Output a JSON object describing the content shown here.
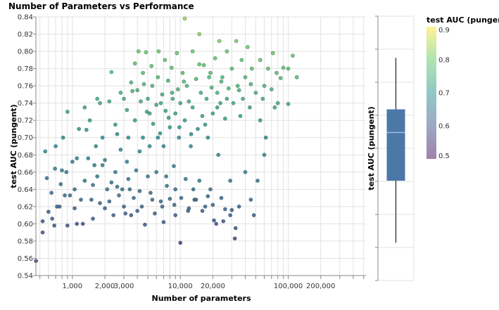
{
  "chart_data": [
    {
      "type": "scatter",
      "title": "Number of Parameters vs Performance",
      "xlabel": "Number of parameters",
      "ylabel": "test AUC (pungent)",
      "xscale": "log",
      "xlim": [
        459,
        525000
      ],
      "ylim": [
        0.54,
        0.84
      ],
      "grid": true,
      "xtick_labels": [
        "1,000",
        "2,000",
        "3,000",
        "10,000",
        "20,000",
        "100,000",
        "200,000"
      ],
      "xtick_values": [
        1000,
        2000,
        3000,
        10000,
        20000,
        100000,
        200000
      ],
      "ytick_labels": [
        "0.54",
        "0.56",
        "0.58",
        "0.60",
        "0.62",
        "0.64",
        "0.66",
        "0.68",
        "0.70",
        "0.72",
        "0.74",
        "0.76",
        "0.78",
        "0.80",
        "0.82",
        "0.84"
      ],
      "color_field": "test AUC (pungent)",
      "points": [
        [
          460,
          0.557
        ],
        [
          530,
          0.59
        ],
        [
          530,
          0.603
        ],
        [
          560,
          0.684
        ],
        [
          580,
          0.653
        ],
        [
          600,
          0.614
        ],
        [
          640,
          0.636
        ],
        [
          650,
          0.606
        ],
        [
          680,
          0.598
        ],
        [
          690,
          0.664
        ],
        [
          700,
          0.69
        ],
        [
          720,
          0.62
        ],
        [
          760,
          0.62
        ],
        [
          780,
          0.646
        ],
        [
          800,
          0.662
        ],
        [
          820,
          0.7
        ],
        [
          850,
          0.633
        ],
        [
          880,
          0.66
        ],
        [
          900,
          0.73
        ],
        [
          900,
          0.598
        ],
        [
          950,
          0.633
        ],
        [
          1000,
          0.672
        ],
        [
          1050,
          0.618
        ],
        [
          1050,
          0.64
        ],
        [
          1100,
          0.6
        ],
        [
          1100,
          0.676
        ],
        [
          1150,
          0.71
        ],
        [
          1200,
          0.628
        ],
        [
          1250,
          0.6
        ],
        [
          1300,
          0.65
        ],
        [
          1300,
          0.735
        ],
        [
          1350,
          0.709
        ],
        [
          1400,
          0.676
        ],
        [
          1450,
          0.72
        ],
        [
          1500,
          0.628
        ],
        [
          1550,
          0.645
        ],
        [
          1550,
          0.606
        ],
        [
          1600,
          0.668
        ],
        [
          1650,
          0.69
        ],
        [
          1700,
          0.745
        ],
        [
          1700,
          0.655
        ],
        [
          1800,
          0.74
        ],
        [
          1800,
          0.624
        ],
        [
          1900,
          0.668
        ],
        [
          1900,
          0.7
        ],
        [
          2000,
          0.618
        ],
        [
          2000,
          0.674
        ],
        [
          2100,
          0.64
        ],
        [
          2200,
          0.742
        ],
        [
          2200,
          0.626
        ],
        [
          2300,
          0.776
        ],
        [
          2300,
          0.648
        ],
        [
          2400,
          0.61
        ],
        [
          2500,
          0.66
        ],
        [
          2500,
          0.715
        ],
        [
          2600,
          0.704
        ],
        [
          2700,
          0.633
        ],
        [
          2800,
          0.752
        ],
        [
          2800,
          0.686
        ],
        [
          2900,
          0.64
        ],
        [
          3000,
          0.745
        ],
        [
          3000,
          0.62
        ],
        [
          3100,
          0.612
        ],
        [
          3200,
          0.672
        ],
        [
          3200,
          0.732
        ],
        [
          3300,
          0.7
        ],
        [
          3400,
          0.64
        ],
        [
          3500,
          0.61
        ],
        [
          3500,
          0.764
        ],
        [
          3600,
          0.754
        ],
        [
          3700,
          0.63
        ],
        [
          3800,
          0.786
        ],
        [
          3800,
          0.72
        ],
        [
          3900,
          0.662
        ],
        [
          4000,
          0.755
        ],
        [
          4000,
          0.615
        ],
        [
          4100,
          0.8
        ],
        [
          4200,
          0.684
        ],
        [
          4300,
          0.742
        ],
        [
          4400,
          0.62
        ],
        [
          4500,
          0.7
        ],
        [
          4500,
          0.775
        ],
        [
          4600,
          0.762
        ],
        [
          4700,
          0.599
        ],
        [
          4800,
          0.799
        ],
        [
          4900,
          0.73
        ],
        [
          5000,
          0.655
        ],
        [
          5000,
          0.745
        ],
        [
          5200,
          0.69
        ],
        [
          5300,
          0.636
        ],
        [
          5400,
          0.783
        ],
        [
          5500,
          0.76
        ],
        [
          5600,
          0.716
        ],
        [
          5800,
          0.612
        ],
        [
          6000,
          0.738
        ],
        [
          6000,
          0.66
        ],
        [
          6200,
          0.77
        ],
        [
          6300,
          0.8
        ],
        [
          6500,
          0.705
        ],
        [
          6600,
          0.626
        ],
        [
          6800,
          0.75
        ],
        [
          7000,
          0.602
        ],
        [
          7000,
          0.69
        ],
        [
          7200,
          0.79
        ],
        [
          7300,
          0.731
        ],
        [
          7500,
          0.644
        ],
        [
          7700,
          0.766
        ],
        [
          8000,
          0.712
        ],
        [
          8000,
          0.629
        ],
        [
          8300,
          0.781
        ],
        [
          8500,
          0.745
        ],
        [
          8700,
          0.667
        ],
        [
          9000,
          0.728
        ],
        [
          9000,
          0.61
        ],
        [
          9300,
          0.798
        ],
        [
          9500,
          0.756
        ],
        [
          9700,
          0.7
        ],
        [
          10000,
          0.578
        ],
        [
          10000,
          0.74
        ],
        [
          10200,
          0.63
        ],
        [
          10500,
          0.775
        ],
        [
          11000,
          0.838
        ],
        [
          11000,
          0.72
        ],
        [
          11200,
          0.652
        ],
        [
          11500,
          0.76
        ],
        [
          12000,
          0.618
        ],
        [
          12000,
          0.742
        ],
        [
          12500,
          0.69
        ],
        [
          13000,
          0.8
        ],
        [
          13000,
          0.735
        ],
        [
          13500,
          0.628
        ],
        [
          14000,
          0.768
        ],
        [
          14500,
          0.71
        ],
        [
          15000,
          0.82
        ],
        [
          15000,
          0.65
        ],
        [
          15500,
          0.752
        ],
        [
          16000,
          0.725
        ],
        [
          16500,
          0.784
        ],
        [
          17000,
          0.62
        ],
        [
          17500,
          0.745
        ],
        [
          18000,
          0.7
        ],
        [
          18500,
          0.77
        ],
        [
          19000,
          0.64
        ],
        [
          19500,
          0.758
        ],
        [
          20000,
          0.728
        ],
        [
          20500,
          0.604
        ],
        [
          21000,
          0.792
        ],
        [
          21500,
          0.6
        ],
        [
          22000,
          0.752
        ],
        [
          22500,
          0.68
        ],
        [
          23000,
          0.812
        ],
        [
          23500,
          0.74
        ],
        [
          24000,
          0.63
        ],
        [
          24500,
          0.77
        ],
        [
          25000,
          0.603
        ],
        [
          26000,
          0.722
        ],
        [
          27000,
          0.8
        ],
        [
          28000,
          0.757
        ],
        [
          29000,
          0.65
        ],
        [
          30000,
          0.78
        ],
        [
          30000,
          0.616
        ],
        [
          31000,
          0.74
        ],
        [
          32000,
          0.583
        ],
        [
          32500,
          0.595
        ],
        [
          33000,
          0.812
        ],
        [
          34000,
          0.76
        ],
        [
          35000,
          0.62
        ],
        [
          36000,
          0.725
        ],
        [
          37000,
          0.79
        ],
        [
          38000,
          0.745
        ],
        [
          40000,
          0.66
        ],
        [
          40000,
          0.77
        ],
        [
          42000,
          0.805
        ],
        [
          44000,
          0.735
        ],
        [
          45000,
          0.628
        ],
        [
          46000,
          0.78
        ],
        [
          48000,
          0.61
        ],
        [
          50000,
          0.752
        ],
        [
          52000,
          0.65
        ],
        [
          55000,
          0.79
        ],
        [
          58000,
          0.745
        ],
        [
          60000,
          0.76
        ],
        [
          62000,
          0.7
        ],
        [
          65000,
          0.78
        ],
        [
          70000,
          0.756
        ],
        [
          72000,
          0.798
        ],
        [
          75000,
          0.735
        ],
        [
          78000,
          0.775
        ],
        [
          80000,
          0.74
        ],
        [
          85000,
          0.769
        ],
        [
          90000,
          0.781
        ],
        [
          100000,
          0.78
        ],
        [
          100000,
          0.739
        ],
        [
          110000,
          0.795
        ],
        [
          120000,
          0.77
        ],
        [
          60000,
          0.68
        ],
        [
          55000,
          0.72
        ],
        [
          9000,
          0.64
        ],
        [
          14000,
          0.628
        ],
        [
          16000,
          0.615
        ],
        [
          18000,
          0.632
        ],
        [
          5500,
          0.628
        ],
        [
          4200,
          0.638
        ],
        [
          6800,
          0.62
        ],
        [
          8800,
          0.622
        ],
        [
          11800,
          0.615
        ],
        [
          13200,
          0.64
        ],
        [
          20000,
          0.622
        ],
        [
          26000,
          0.617
        ],
        [
          29000,
          0.61
        ],
        [
          3300,
          0.652
        ],
        [
          2600,
          0.643
        ],
        [
          7400,
          0.655
        ],
        [
          6200,
          0.7
        ],
        [
          7800,
          0.723
        ],
        [
          9800,
          0.712
        ],
        [
          12600,
          0.704
        ],
        [
          17000,
          0.715
        ],
        [
          22000,
          0.735
        ],
        [
          27000,
          0.745
        ],
        [
          35000,
          0.755
        ],
        [
          45000,
          0.762
        ],
        [
          24000,
          0.765
        ],
        [
          19000,
          0.775
        ],
        [
          15000,
          0.785
        ],
        [
          10800,
          0.765
        ],
        [
          8400,
          0.752
        ],
        [
          6600,
          0.74
        ],
        [
          5200,
          0.728
        ]
      ]
    },
    {
      "type": "box",
      "ylabel": "test AUC (pungent)",
      "ylim": [
        0.45,
        0.85
      ],
      "whisker_low": 0.507,
      "q1": 0.601,
      "median": 0.674,
      "q3": 0.709,
      "whisker_high": 0.787,
      "box_color": "#4c78a8"
    }
  ],
  "legend": {
    "title": "test AUC (pungent)",
    "labels": [
      "0.9",
      "0.8",
      "0.7",
      "0.6",
      "0.5"
    ],
    "domain": [
      0.5,
      0.9
    ],
    "colors": [
      "#440154",
      "#3b528b",
      "#21918c",
      "#5ec962",
      "#fde725"
    ]
  }
}
